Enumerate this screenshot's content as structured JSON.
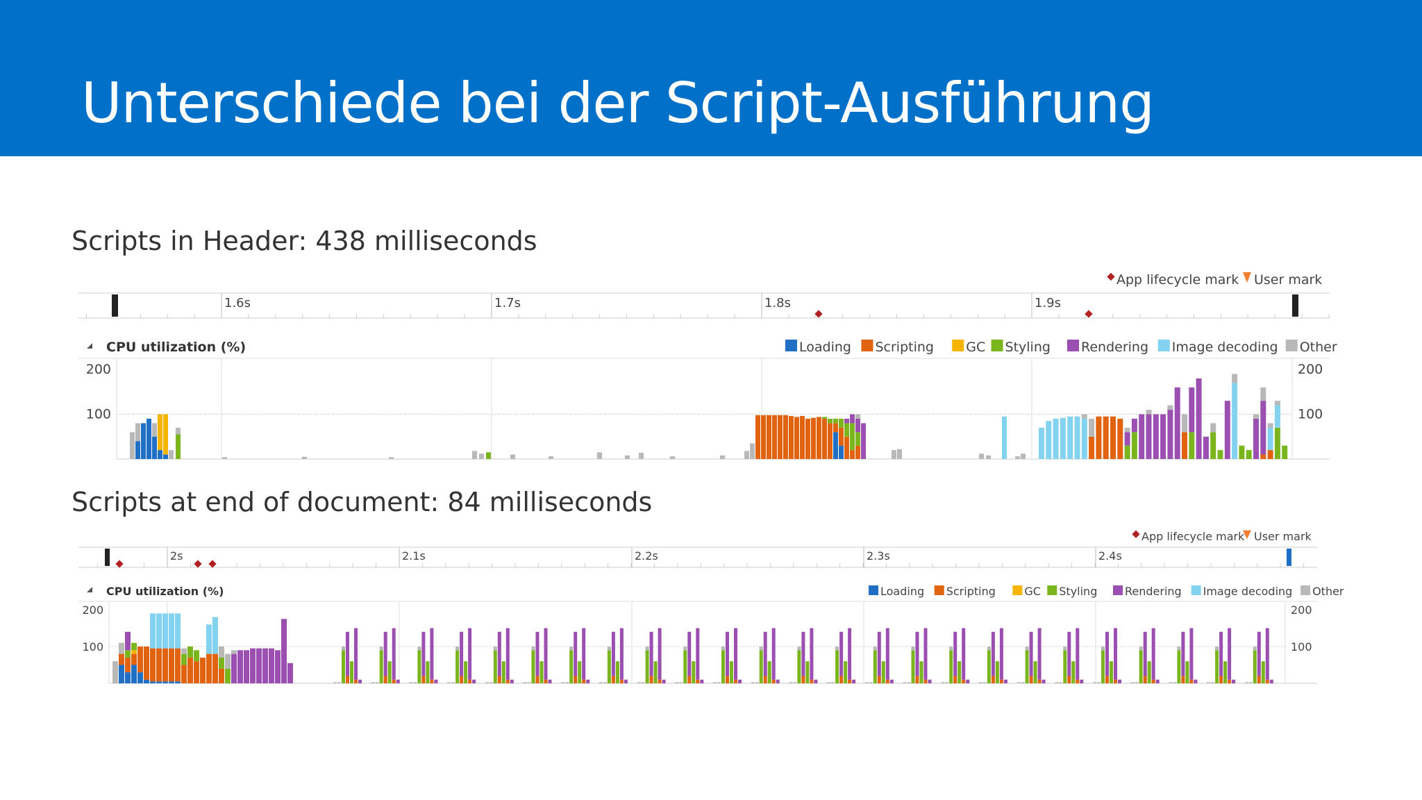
{
  "slide": {
    "title": "Unterschiede bei der Script-Ausführung"
  },
  "legend_labels": {
    "app_lifecycle_mark": "App lifecycle mark",
    "user_mark": "User mark",
    "cpu_utilization": "CPU utilization (%)",
    "loading": "Loading",
    "scripting": "Scripting",
    "gc": "GC",
    "styling": "Styling",
    "rendering": "Rendering",
    "image_decoding": "Image decoding",
    "other": "Other"
  },
  "colors": {
    "header": "#0070c9",
    "loading": "#1f6fc5",
    "scripting": "#e1620f",
    "gc": "#f4b400",
    "styling": "#7ab51d",
    "rendering": "#9b4fb0",
    "image_decoding": "#83d3f0",
    "other": "#b8b8b8",
    "app_lifecycle_mark": "#b22222",
    "user_mark": "#f08030"
  },
  "sections": [
    {
      "title": "Scripts in Header: 438 milliseconds",
      "time_ticks": [
        "1.6s",
        "1.7s",
        "1.8s",
        "1.9s"
      ],
      "y_ticks": [
        "200",
        "100"
      ],
      "chart_data": {
        "type": "bar",
        "stacked": true,
        "ylim": [
          0,
          200
        ],
        "categories": [
          "Loading",
          "Scripting",
          "GC",
          "Styling",
          "Rendering",
          "Image decoding",
          "Other"
        ],
        "bars": [
          [
            0,
            0,
            0,
            0,
            0,
            0,
            60
          ],
          [
            40,
            0,
            0,
            0,
            0,
            0,
            40
          ],
          [
            80,
            0,
            0,
            0,
            0,
            0,
            0
          ],
          [
            90,
            0,
            0,
            0,
            0,
            0,
            0
          ],
          [
            50,
            0,
            0,
            0,
            0,
            0,
            30
          ],
          [
            20,
            0,
            80,
            0,
            0,
            0,
            0
          ],
          [
            10,
            0,
            90,
            0,
            0,
            0,
            0
          ],
          [
            0,
            0,
            0,
            0,
            0,
            0,
            20
          ],
          [
            0,
            0,
            0,
            55,
            0,
            0,
            15
          ],
          [
            0,
            0,
            0,
            0,
            0,
            0,
            4
          ],
          [
            0,
            0,
            0,
            0,
            0,
            0,
            5
          ],
          [
            0,
            0,
            0,
            0,
            0,
            0,
            4
          ],
          [
            0,
            0,
            0,
            0,
            0,
            0,
            18
          ],
          [
            0,
            0,
            0,
            0,
            0,
            0,
            12
          ],
          [
            0,
            0,
            0,
            15,
            0,
            0,
            0
          ],
          [
            0,
            0,
            0,
            0,
            0,
            0,
            10
          ],
          [
            0,
            0,
            0,
            0,
            0,
            0,
            6
          ],
          [
            0,
            0,
            0,
            0,
            0,
            0,
            15
          ],
          [
            0,
            0,
            0,
            0,
            0,
            0,
            8
          ],
          [
            0,
            0,
            0,
            0,
            0,
            0,
            14
          ],
          [
            0,
            0,
            0,
            0,
            0,
            0,
            6
          ],
          [
            0,
            0,
            0,
            0,
            0,
            0,
            8
          ],
          [
            0,
            0,
            0,
            0,
            0,
            0,
            18
          ],
          [
            0,
            0,
            0,
            0,
            0,
            0,
            35
          ],
          [
            0,
            98,
            0,
            0,
            0,
            0,
            0
          ],
          [
            0,
            98,
            0,
            0,
            0,
            0,
            0
          ],
          [
            0,
            98,
            0,
            0,
            0,
            0,
            0
          ],
          [
            0,
            98,
            0,
            0,
            0,
            0,
            0
          ],
          [
            0,
            98,
            0,
            0,
            0,
            0,
            0
          ],
          [
            0,
            98,
            0,
            0,
            0,
            0,
            0
          ],
          [
            0,
            96,
            0,
            0,
            0,
            0,
            0
          ],
          [
            0,
            94,
            0,
            0,
            0,
            0,
            0
          ],
          [
            0,
            96,
            0,
            0,
            0,
            0,
            0
          ],
          [
            0,
            90,
            0,
            0,
            0,
            0,
            0
          ],
          [
            0,
            92,
            0,
            0,
            0,
            0,
            0
          ],
          [
            0,
            94,
            0,
            0,
            0,
            0,
            0
          ],
          [
            0,
            90,
            0,
            4,
            0,
            0,
            0
          ],
          [
            0,
            80,
            0,
            10,
            0,
            0,
            0
          ],
          [
            60,
            20,
            0,
            10,
            0,
            0,
            0
          ],
          [
            30,
            40,
            0,
            20,
            0,
            0,
            0
          ],
          [
            0,
            50,
            0,
            30,
            10,
            0,
            0
          ],
          [
            0,
            20,
            0,
            60,
            20,
            0,
            0
          ],
          [
            0,
            30,
            0,
            30,
            30,
            0,
            10
          ],
          [
            0,
            0,
            0,
            0,
            80,
            0,
            0
          ],
          [
            0,
            0,
            0,
            0,
            0,
            0,
            20
          ],
          [
            0,
            0,
            0,
            0,
            0,
            0,
            22
          ],
          [
            0,
            0,
            0,
            0,
            0,
            0,
            12
          ],
          [
            0,
            0,
            0,
            0,
            0,
            0,
            8
          ],
          [
            0,
            0,
            0,
            0,
            0,
            95,
            0
          ],
          [
            0,
            0,
            0,
            0,
            0,
            0,
            6
          ],
          [
            0,
            0,
            0,
            0,
            0,
            0,
            12
          ],
          [
            0,
            0,
            0,
            0,
            0,
            70,
            0
          ],
          [
            0,
            0,
            0,
            0,
            0,
            85,
            0
          ],
          [
            0,
            0,
            0,
            0,
            0,
            90,
            0
          ],
          [
            0,
            0,
            0,
            0,
            0,
            92,
            0
          ],
          [
            0,
            0,
            0,
            0,
            0,
            95,
            0
          ],
          [
            0,
            0,
            0,
            0,
            0,
            95,
            0
          ],
          [
            0,
            0,
            0,
            0,
            0,
            90,
            10
          ],
          [
            0,
            50,
            0,
            0,
            0,
            0,
            40
          ],
          [
            0,
            95,
            0,
            0,
            0,
            0,
            0
          ],
          [
            0,
            95,
            0,
            0,
            0,
            0,
            0
          ],
          [
            0,
            95,
            0,
            0,
            0,
            0,
            0
          ],
          [
            0,
            90,
            0,
            0,
            0,
            0,
            0
          ],
          [
            0,
            0,
            0,
            30,
            30,
            0,
            10
          ],
          [
            0,
            0,
            0,
            60,
            30,
            0,
            0
          ],
          [
            0,
            0,
            0,
            0,
            100,
            0,
            0
          ],
          [
            0,
            0,
            0,
            0,
            100,
            0,
            10
          ],
          [
            0,
            0,
            0,
            0,
            100,
            0,
            0
          ],
          [
            0,
            0,
            0,
            0,
            100,
            0,
            0
          ],
          [
            0,
            0,
            0,
            0,
            110,
            0,
            10
          ],
          [
            0,
            0,
            0,
            0,
            160,
            0,
            0
          ],
          [
            0,
            60,
            0,
            0,
            0,
            0,
            40
          ],
          [
            0,
            0,
            0,
            60,
            100,
            0,
            0
          ],
          [
            0,
            0,
            0,
            0,
            180,
            0,
            0
          ],
          [
            0,
            0,
            0,
            0,
            50,
            0,
            0
          ],
          [
            0,
            0,
            0,
            60,
            0,
            0,
            20
          ],
          [
            0,
            0,
            0,
            20,
            0,
            0,
            0
          ],
          [
            0,
            0,
            0,
            0,
            130,
            0,
            0
          ],
          [
            0,
            0,
            0,
            0,
            0,
            170,
            20
          ],
          [
            0,
            0,
            0,
            30,
            0,
            0,
            0
          ],
          [
            0,
            0,
            0,
            20,
            0,
            0,
            0
          ],
          [
            0,
            0,
            0,
            0,
            90,
            0,
            10
          ],
          [
            0,
            10,
            0,
            0,
            120,
            0,
            30
          ],
          [
            0,
            20,
            0,
            0,
            0,
            50,
            10
          ],
          [
            0,
            0,
            0,
            70,
            0,
            50,
            10
          ],
          [
            0,
            0,
            0,
            30,
            0,
            0,
            0
          ]
        ]
      }
    },
    {
      "title": "Scripts at end of document: 84 milliseconds",
      "time_ticks": [
        "2s",
        "2.1s",
        "2.2s",
        "2.3s",
        "2.4s"
      ],
      "y_ticks": [
        "200",
        "100"
      ],
      "chart_data": {
        "type": "bar",
        "stacked": true,
        "ylim": [
          0,
          200
        ],
        "categories": [
          "Loading",
          "Scripting",
          "GC",
          "Styling",
          "Rendering",
          "Image decoding",
          "Other"
        ],
        "bars": [
          [
            0,
            0,
            0,
            0,
            0,
            0,
            60
          ],
          [
            50,
            30,
            0,
            0,
            0,
            0,
            30
          ],
          [
            30,
            40,
            0,
            20,
            50,
            0,
            0
          ],
          [
            50,
            30,
            10,
            20,
            0,
            0,
            0
          ],
          [
            30,
            70,
            0,
            0,
            0,
            0,
            0
          ],
          [
            10,
            90,
            0,
            0,
            0,
            0,
            0
          ],
          [
            5,
            90,
            0,
            0,
            0,
            95,
            0
          ],
          [
            5,
            90,
            0,
            0,
            0,
            95,
            0
          ],
          [
            5,
            90,
            0,
            0,
            0,
            95,
            0
          ],
          [
            5,
            90,
            0,
            0,
            0,
            95,
            0
          ],
          [
            5,
            90,
            0,
            0,
            0,
            95,
            0
          ],
          [
            0,
            50,
            0,
            30,
            0,
            0,
            15
          ],
          [
            0,
            70,
            0,
            30,
            0,
            0,
            0
          ],
          [
            0,
            60,
            0,
            30,
            0,
            0,
            0
          ],
          [
            0,
            70,
            0,
            0,
            0,
            0,
            0
          ],
          [
            0,
            80,
            0,
            0,
            0,
            80,
            0
          ],
          [
            0,
            80,
            0,
            0,
            0,
            100,
            0
          ],
          [
            0,
            40,
            0,
            30,
            0,
            0,
            30
          ],
          [
            0,
            0,
            0,
            40,
            0,
            0,
            40
          ],
          [
            0,
            0,
            0,
            0,
            80,
            0,
            10
          ],
          [
            0,
            0,
            0,
            0,
            90,
            0,
            0
          ],
          [
            0,
            0,
            0,
            0,
            90,
            0,
            0
          ],
          [
            0,
            0,
            0,
            0,
            95,
            0,
            0
          ],
          [
            0,
            0,
            0,
            0,
            95,
            0,
            0
          ],
          [
            0,
            0,
            0,
            0,
            95,
            0,
            0
          ],
          [
            0,
            0,
            0,
            0,
            95,
            0,
            0
          ],
          [
            0,
            0,
            0,
            0,
            90,
            0,
            0
          ],
          [
            0,
            0,
            0,
            0,
            175,
            0,
            0
          ],
          [
            0,
            0,
            0,
            0,
            55,
            0,
            0
          ],
          [
            0,
            0,
            0,
            0,
            0,
            0,
            3
          ],
          [
            0,
            0,
            0,
            0,
            0,
            0,
            3
          ],
          [
            0,
            0,
            0,
            90,
            0,
            0,
            10
          ],
          [
            0,
            20,
            0,
            0,
            120,
            0,
            0
          ],
          [
            0,
            0,
            0,
            60,
            0,
            0,
            0
          ],
          [
            0,
            10,
            0,
            0,
            140,
            0,
            0
          ],
          [
            0,
            0,
            0,
            0,
            10,
            0,
            0
          ]
        ],
        "cycles": 12
      }
    }
  ]
}
